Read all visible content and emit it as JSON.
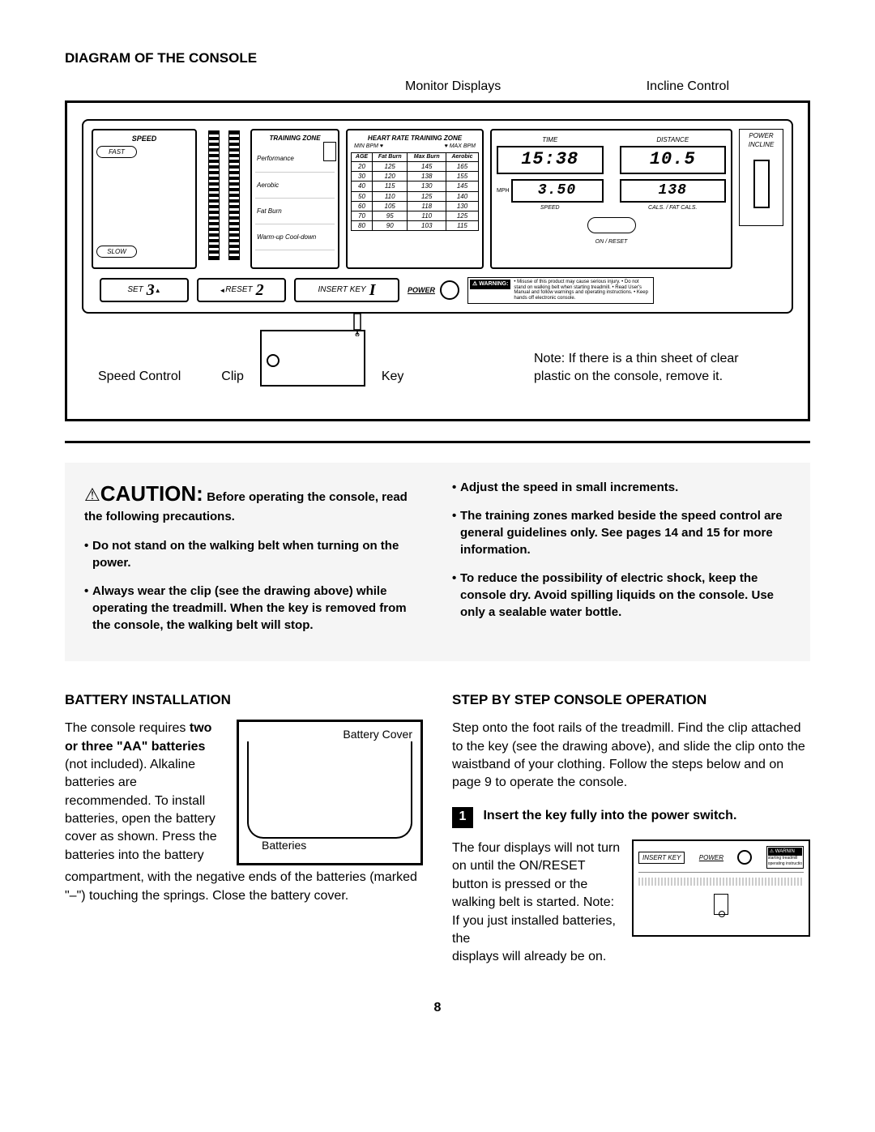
{
  "title": "DIAGRAM OF THE CONSOLE",
  "callouts": {
    "monitor": "Monitor Displays",
    "incline": "Incline Control",
    "speed": "Speed Control",
    "clip": "Clip",
    "key": "Key",
    "note": "Note: If there is a thin sheet of clear plastic on the console, remove it."
  },
  "console": {
    "speed_hdr": "SPEED",
    "fast": "FAST",
    "slow": "SLOW",
    "zone_hdr": "TRAINING ZONE",
    "zones": [
      "Performance",
      "Aerobic",
      "Fat Burn",
      "Warm-up Cool-down"
    ],
    "hr_hdr": "HEART RATE TRAINING ZONE",
    "hr_min": "MIN BPM ♥",
    "hr_max": "♥ MAX BPM",
    "hr_cols": [
      "AGE",
      "Fat Burn",
      "Max Burn",
      "Aerobic"
    ],
    "hr_rows": [
      [
        "20",
        "125",
        "145",
        "165"
      ],
      [
        "30",
        "120",
        "138",
        "155"
      ],
      [
        "40",
        "115",
        "130",
        "145"
      ],
      [
        "50",
        "110",
        "125",
        "140"
      ],
      [
        "60",
        "105",
        "118",
        "130"
      ],
      [
        "70",
        "95",
        "110",
        "125"
      ],
      [
        "80",
        "90",
        "103",
        "115"
      ]
    ],
    "disp_time": "TIME",
    "disp_distance": "DISTANCE",
    "disp_speed": "SPEED",
    "disp_cals": "CALS. / FAT CALS.",
    "val_time": "15:38",
    "val_distance": "10.5",
    "val_speed": "3.50",
    "val_cals": "138",
    "mph": "MPH",
    "onreset": "ON / RESET",
    "power_incline": "POWER INCLINE",
    "set": "SET",
    "set_val": "3",
    "reset": "RESET",
    "reset_val": "2",
    "insert_key": "INSERT KEY",
    "power": "POWER",
    "warning_badge": "⚠ WARNING:",
    "warning_text": "• Misuse of this product may cause serious injury. • Do not stand on walking belt when starting treadmill. • Read User's Manual and follow warnings and operating instructions. • Keep hands off electronic console."
  },
  "caution": {
    "icon": "⚠",
    "title": "CAUTION:",
    "lead": "Before operating the console, read the following precautions.",
    "left": [
      "Do not stand on the walking belt when turning on the power.",
      "Always wear the clip (see the drawing above) while operating the treadmill. When the key is removed from the console, the walking belt will stop."
    ],
    "right": [
      "Adjust the speed in small increments.",
      "The training zones marked beside the speed control are general guidelines only. See pages 14 and 15 for more information.",
      "To reduce the possibility of electric shock, keep the console dry. Avoid spilling liquids on the console. Use only a sealable water bottle."
    ]
  },
  "battery": {
    "title": "BATTERY INSTALLATION",
    "text1": "The console requires ",
    "bold1": "two or three \"AA\" batteries",
    "text2": " (not included). Alkaline batteries are recommended. To install batteries, open the battery cover as shown. Press the batteries into the battery",
    "text3": "compartment, with the negative ends of the batteries (marked \"–\") touching the springs. Close the battery cover.",
    "fig_cover": "Battery Cover",
    "fig_batt": "Batteries"
  },
  "step": {
    "title": "STEP BY STEP CONSOLE OPERATION",
    "intro": "Step onto the foot rails of the treadmill. Find the clip attached to the key (see the drawing above), and slide the clip onto the waistband of your clothing. Follow the steps below and on page 9 to operate the console.",
    "num": "1",
    "head": "Insert the key fully into the power switch.",
    "body": "The four displays will not turn on until the ON/RESET button is pressed or the walking belt is started. Note: If you just installed batteries, the",
    "body2": "displays will already be on.",
    "fig_insert": "INSERT KEY",
    "fig_power": "POWER",
    "fig_warn": "⚠ WARNIN"
  },
  "page": "8"
}
